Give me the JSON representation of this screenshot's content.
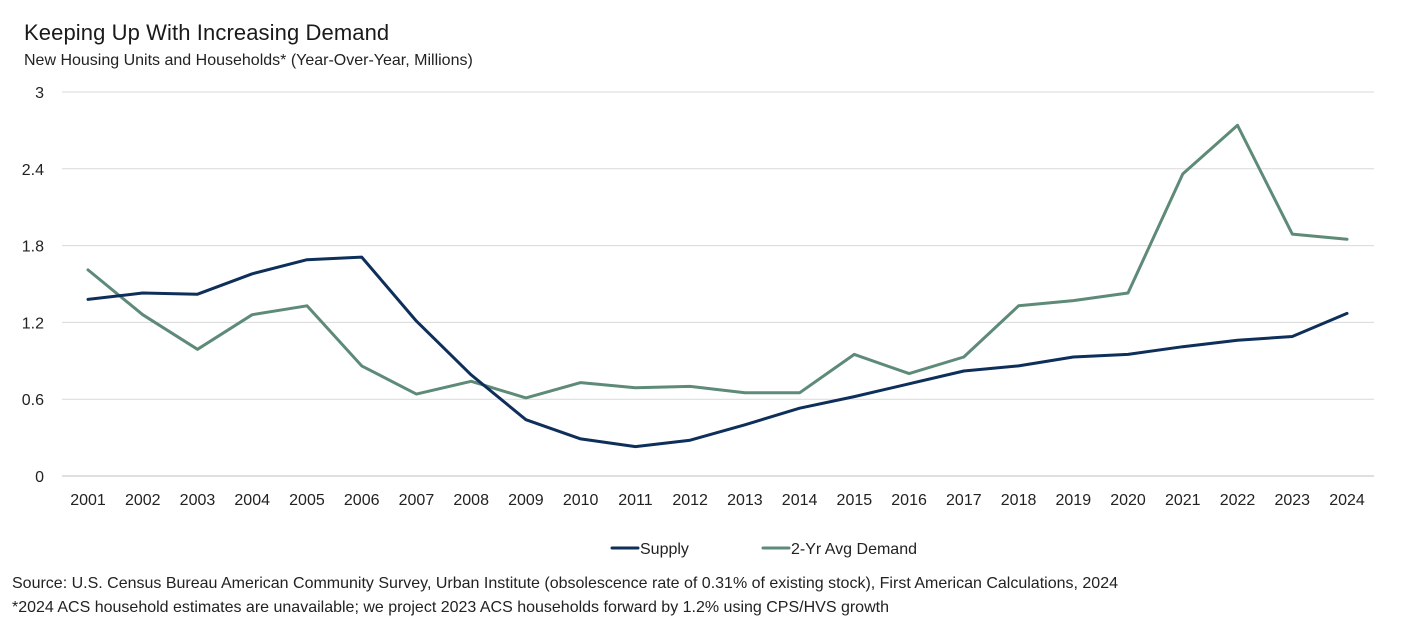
{
  "header": {
    "title": "Keeping Up With Increasing Demand",
    "subtitle": "New Housing Units and Households* (Year-Over-Year, Millions)"
  },
  "footer": {
    "source": "Source: U.S. Census Bureau American Community Survey, Urban Institute (obsolescence rate of 0.31% of existing stock), First American Calculations, 2024",
    "note": "*2024 ACS household estimates are unavailable; we project 2023 ACS households forward by 1.2% using CPS/HVS growth"
  },
  "colors": {
    "supply": "#0e2f5a",
    "demand": "#5e8a78",
    "grid": "#d9d9d9",
    "axis": "#bfbfbf"
  },
  "chart_data": {
    "type": "line",
    "title": "Keeping Up With Increasing Demand",
    "subtitle": "New Housing Units and Households* (Year-Over-Year, Millions)",
    "xlabel": "",
    "ylabel": "",
    "ylim": [
      0,
      3
    ],
    "yticks": [
      0,
      0.6,
      1.2,
      1.8,
      2.4,
      3
    ],
    "ytick_labels": [
      "0",
      "0.6",
      "1.2",
      "1.8",
      "2.4",
      "3"
    ],
    "grid": true,
    "legend_position": "bottom-center",
    "categories": [
      "2001",
      "2002",
      "2003",
      "2004",
      "2005",
      "2006",
      "2007",
      "2008",
      "2009",
      "2010",
      "2011",
      "2012",
      "2013",
      "2014",
      "2015",
      "2016",
      "2017",
      "2018",
      "2019",
      "2020",
      "2021",
      "2022",
      "2023",
      "2024"
    ],
    "series": [
      {
        "name": "Supply",
        "color": "#0e2f5a",
        "values": [
          1.38,
          1.43,
          1.42,
          1.58,
          1.69,
          1.71,
          1.21,
          0.79,
          0.44,
          0.29,
          0.23,
          0.28,
          0.4,
          0.53,
          0.62,
          0.72,
          0.82,
          0.86,
          0.93,
          0.95,
          1.01,
          1.06,
          1.09,
          1.27
        ]
      },
      {
        "name": "2-Yr Avg Demand",
        "color": "#5e8a78",
        "values": [
          1.61,
          1.26,
          0.99,
          1.26,
          1.33,
          0.86,
          0.64,
          0.74,
          0.61,
          0.73,
          0.69,
          0.7,
          0.65,
          0.65,
          0.95,
          0.8,
          0.93,
          1.33,
          1.37,
          1.43,
          2.36,
          2.74,
          1.89,
          1.85
        ]
      }
    ]
  }
}
